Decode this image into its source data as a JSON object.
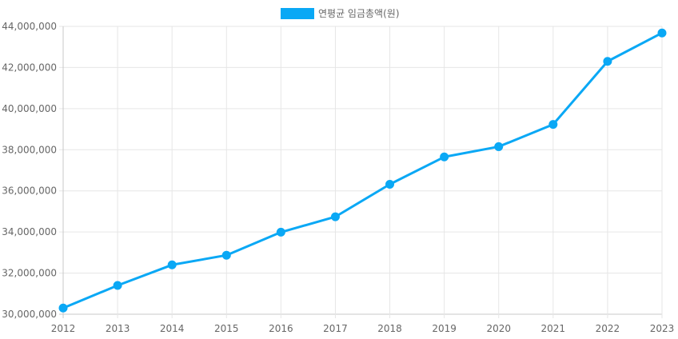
{
  "chart_data": {
    "type": "line",
    "x": [
      "2012",
      "2013",
      "2014",
      "2015",
      "2016",
      "2017",
      "2018",
      "2019",
      "2020",
      "2021",
      "2022",
      "2023"
    ],
    "series": [
      {
        "name": "연평균 임금총액(원)",
        "values": [
          30300000,
          31400000,
          32400000,
          32870000,
          33990000,
          34740000,
          36320000,
          37650000,
          38150000,
          39230000,
          42300000,
          43680000
        ],
        "color": "#0aa8f5"
      }
    ],
    "ylim": [
      30000000,
      44000000
    ],
    "yticks": [
      "30,000,000",
      "32,000,000",
      "34,000,000",
      "36,000,000",
      "38,000,000",
      "40,000,000",
      "42,000,000",
      "44,000,000"
    ],
    "ytick_values": [
      30000000,
      32000000,
      34000000,
      36000000,
      38000000,
      40000000,
      42000000,
      44000000
    ],
    "grid": true,
    "legend_position": "top-center",
    "title": "",
    "xlabel": "",
    "ylabel": ""
  }
}
